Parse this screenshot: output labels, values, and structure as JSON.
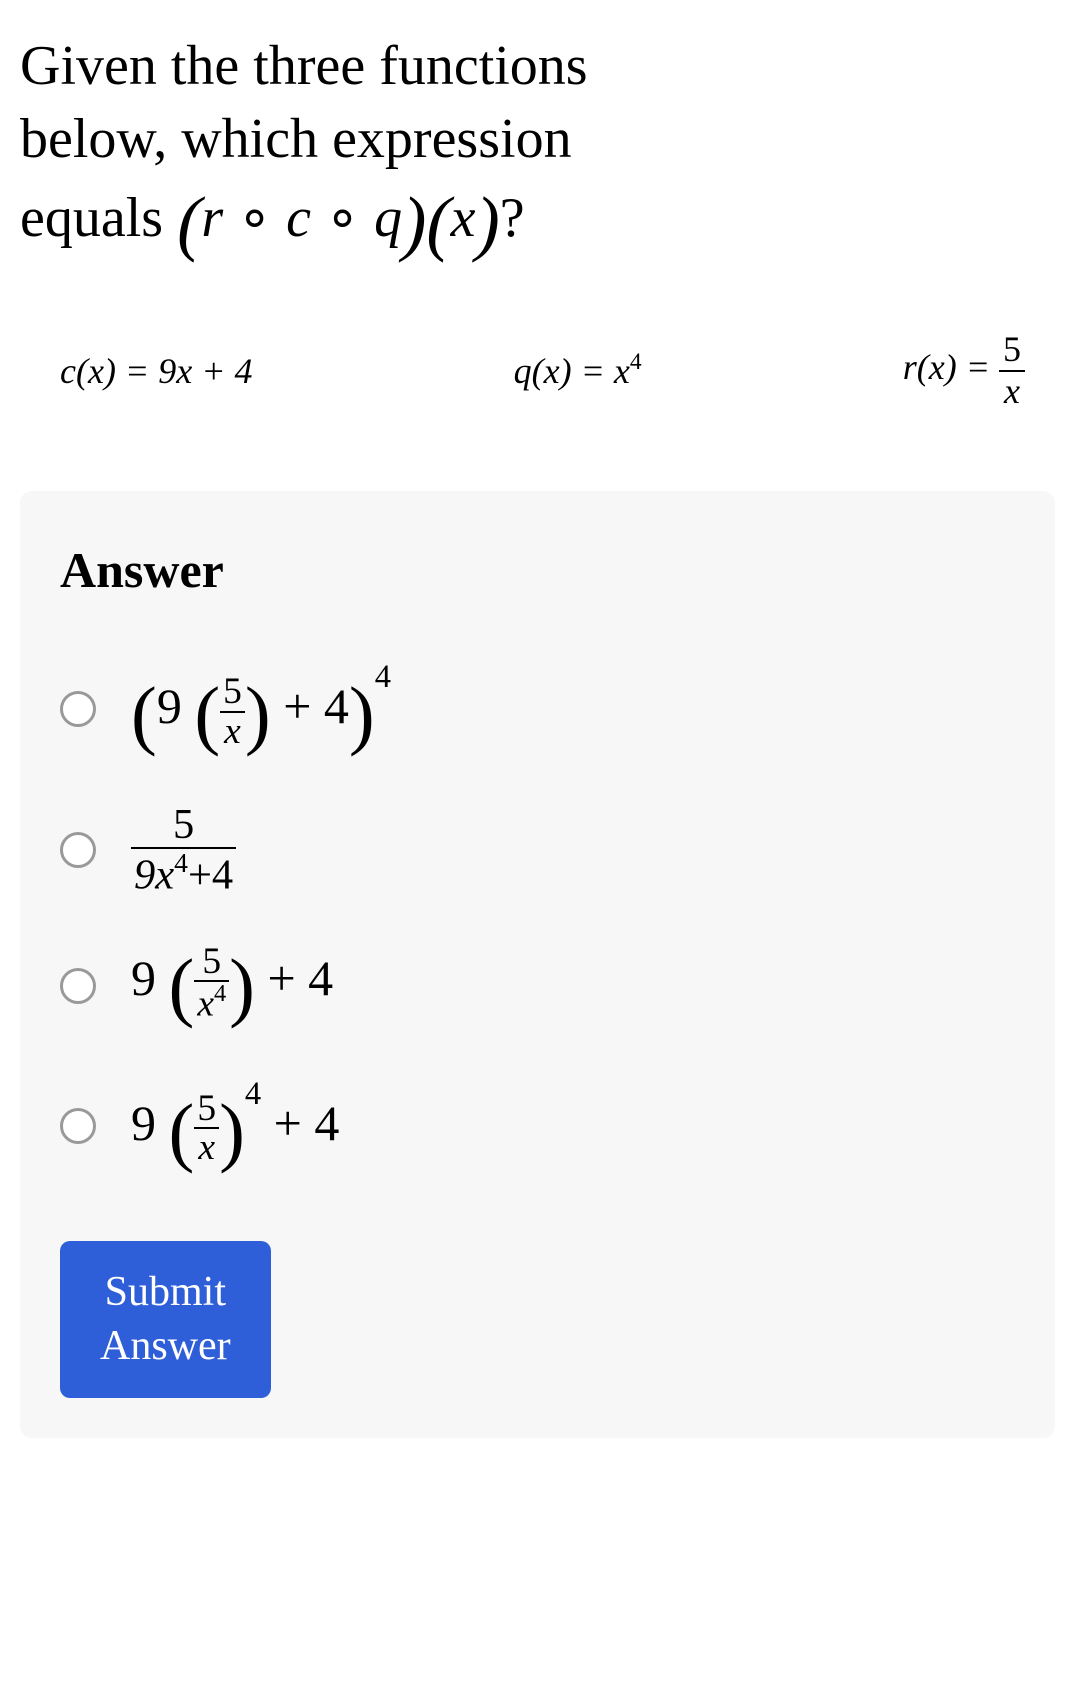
{
  "question": {
    "line1": "Given the three functions",
    "line2": "below, which expression",
    "line3_prefix": "equals ",
    "composition_open": "(",
    "r": "r",
    "circ": " ∘ ",
    "c": "c",
    "q": "q",
    "composition_close": ")",
    "arg_open": "(",
    "x": "x",
    "arg_close": ")",
    "qmark": "?"
  },
  "functions": {
    "c": {
      "lhs": "c(x) = ",
      "rhs": "9x + 4"
    },
    "q": {
      "lhs": "q(x) = ",
      "rhs_base": "x",
      "rhs_exp": "4"
    },
    "r": {
      "lhs": "r(x) = ",
      "num": "5",
      "den": "x"
    }
  },
  "answer_label": "Answer",
  "options": {
    "a": {
      "open": "(",
      "coef": "9 ",
      "p1": "(",
      "fnum": "5",
      "fden": "x",
      "p2": ")",
      "plus": " + 4",
      "close": ")",
      "exp": "4"
    },
    "b": {
      "num": "5",
      "den_a": "9x",
      "den_exp": "4",
      "den_b": "+4"
    },
    "c": {
      "coef": "9 ",
      "p1": "(",
      "fnum": "5",
      "fden_base": "x",
      "fden_exp": "4",
      "p2": ")",
      "plus": " + 4"
    },
    "d": {
      "coef": "9 ",
      "p1": "(",
      "fnum": "5",
      "fden": "x",
      "p2": ")",
      "exp": "4",
      "plus": " + 4"
    }
  },
  "submit": {
    "line1": "Submit",
    "line2": "Answer"
  },
  "colors": {
    "button_bg": "#2f5fd8",
    "panel_bg": "#f7f7f7",
    "text": "#000000",
    "radio_border": "#999999"
  }
}
